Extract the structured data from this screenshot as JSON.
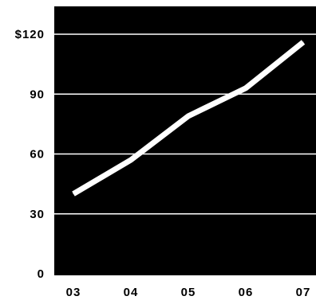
{
  "chart_data": {
    "type": "line",
    "x": [
      "03",
      "04",
      "05",
      "06",
      "07"
    ],
    "series": [
      {
        "values": [
          40,
          57,
          79,
          93,
          116
        ]
      }
    ],
    "ylim": [
      0,
      125
    ],
    "yticks": [
      0,
      30,
      60,
      90,
      120
    ],
    "ytick_labels": [
      "0",
      "30",
      "60",
      "90",
      "$120"
    ],
    "grid": true,
    "colors": {
      "plot_background": "#000000",
      "grid": "#ffffff",
      "line": "#ffffff",
      "text": "#000000"
    }
  }
}
